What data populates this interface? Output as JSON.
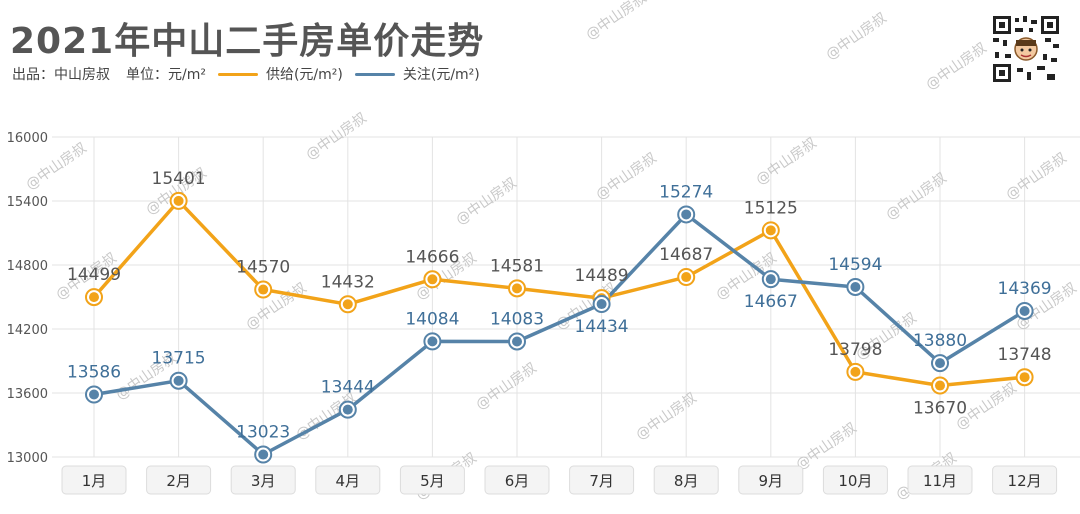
{
  "header": {
    "title": "2021年中山二手房单价走势",
    "source": "出品：中山房叔",
    "unit": "单位：元/m²"
  },
  "colors": {
    "supply": "#F2A319",
    "attention": "#5683A8",
    "grid": "#e3e3e3",
    "axis_text": "#555555"
  },
  "watermark": "@中山房叔",
  "chart_data": {
    "type": "line",
    "title": "2021年中山二手房单价走势",
    "xlabel": "",
    "ylabel": "",
    "ylim": [
      13000,
      16000
    ],
    "yticks": [
      13000,
      13600,
      14200,
      14800,
      15400,
      16000
    ],
    "grid": true,
    "legend_position": "top-left",
    "categories": [
      "1月",
      "2月",
      "3月",
      "4月",
      "5月",
      "6月",
      "7月",
      "8月",
      "9月",
      "10月",
      "11月",
      "12月"
    ],
    "series": [
      {
        "name": "供给(元/m²)",
        "values": [
          14499,
          15401,
          14570,
          14432,
          14666,
          14581,
          14489,
          14687,
          15125,
          13798,
          13670,
          13748
        ]
      },
      {
        "name": "关注(元/m²)",
        "values": [
          13586,
          13715,
          13023,
          13444,
          14084,
          14083,
          14434,
          15274,
          14667,
          14594,
          13880,
          14369
        ]
      }
    ]
  }
}
